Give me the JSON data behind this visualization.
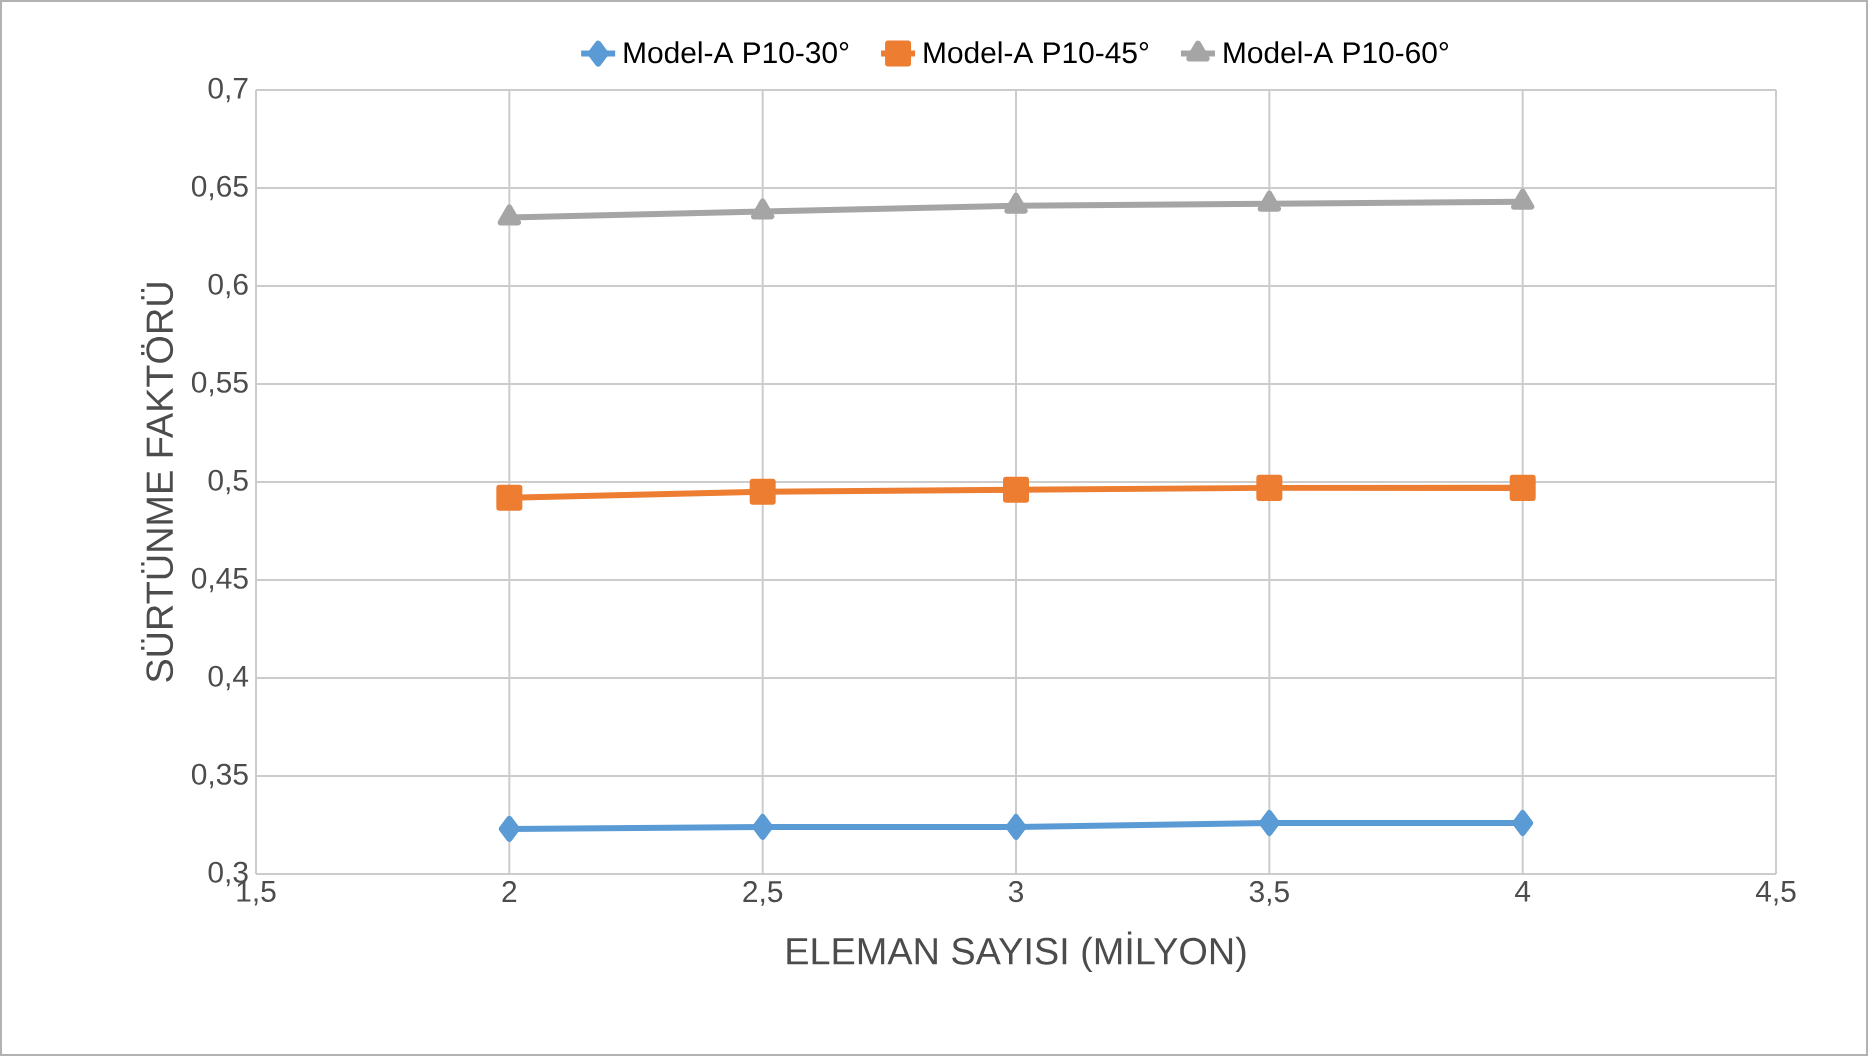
{
  "chart_data": {
    "type": "line",
    "xlabel": "ELEMAN SAYISI (MİLYON)",
    "ylabel": "SÜRTÜNME FAKTÖRÜ",
    "x": [
      2,
      2.5,
      3,
      3.5,
      4
    ],
    "series": [
      {
        "name": "Model-A P10-30°",
        "color": "#5b9bd5",
        "marker": "diamond",
        "values": [
          0.323,
          0.324,
          0.324,
          0.326,
          0.326
        ]
      },
      {
        "name": "Model-A P10-45°",
        "color": "#ed7d31",
        "marker": "square",
        "values": [
          0.492,
          0.495,
          0.496,
          0.497,
          0.497
        ]
      },
      {
        "name": "Model-A P10-60°",
        "color": "#a5a5a5",
        "marker": "triangle",
        "values": [
          0.635,
          0.638,
          0.641,
          0.642,
          0.643
        ]
      }
    ],
    "xlim": [
      1.5,
      4.5
    ],
    "xticks": [
      {
        "value": 1.5,
        "label": "1,5"
      },
      2,
      {
        "value": 2.5,
        "label": "2,5"
      },
      3,
      {
        "value": 3.5,
        "label": "3,5"
      },
      4,
      {
        "value": 4.5,
        "label": "4,5"
      }
    ],
    "ylim": [
      0.3,
      0.7
    ],
    "yticks": [
      {
        "value": 0.3,
        "label": "0,3"
      },
      {
        "value": 0.35,
        "label": "0,35"
      },
      {
        "value": 0.4,
        "label": "0,4"
      },
      {
        "value": 0.45,
        "label": "0,45"
      },
      {
        "value": 0.5,
        "label": "0,5"
      },
      {
        "value": 0.55,
        "label": "0,55"
      },
      {
        "value": 0.6,
        "label": "0,6"
      },
      {
        "value": 0.65,
        "label": "0,65"
      },
      {
        "value": 0.7,
        "label": "0,7"
      }
    ],
    "grid": true,
    "legend": "top",
    "line_style": "solid"
  }
}
